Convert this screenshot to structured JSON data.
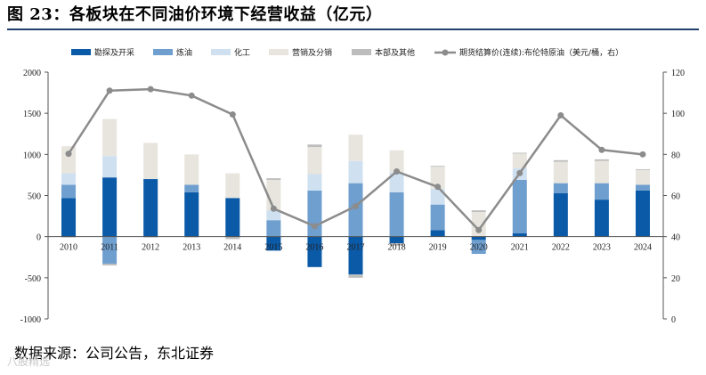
{
  "figure": {
    "title": "图 23：各板块在不同油价环境下经营收益（亿元）",
    "source": "数据来源：公司公告，东北证券",
    "watermark": "八股精选"
  },
  "chart_data": {
    "type": "bar",
    "stacked": true,
    "categories": [
      "2010",
      "2011",
      "2012",
      "2013",
      "2014",
      "2015",
      "2016",
      "2017",
      "2018",
      "2019",
      "2020",
      "2021",
      "2022",
      "2023",
      "2024"
    ],
    "series": [
      {
        "name": "勘探及开采",
        "color": "#0a5aa8",
        "values": [
          470,
          720,
          700,
          540,
          470,
          -170,
          -370,
          -460,
          -80,
          80,
          -40,
          40,
          530,
          450,
          560
        ]
      },
      {
        "name": "炼油",
        "color": "#6f9fcf",
        "values": [
          160,
          -330,
          0,
          90,
          0,
          200,
          560,
          650,
          540,
          310,
          -170,
          650,
          120,
          200,
          70
        ]
      },
      {
        "name": "化工",
        "color": "#cfe0f1",
        "values": [
          140,
          260,
          0,
          0,
          0,
          120,
          200,
          270,
          240,
          190,
          0,
          140,
          0,
          0,
          0
        ]
      },
      {
        "name": "营销及分销",
        "color": "#e8e5de",
        "values": [
          330,
          450,
          440,
          370,
          300,
          370,
          330,
          320,
          270,
          270,
          300,
          180,
          260,
          270,
          180
        ]
      },
      {
        "name": "本部及其他",
        "color": "#bdbdbd",
        "values": [
          -10,
          -20,
          -10,
          -10,
          -30,
          20,
          30,
          -40,
          -30,
          10,
          20,
          10,
          20,
          20,
          10
        ]
      }
    ],
    "line_series": {
      "name": "期货结算价(连续):布伦特原油（美元/桶，右）",
      "color": "#8c8c8c",
      "axis": "right",
      "values": [
        80.3,
        111,
        111.7,
        108.6,
        99.4,
        53.6,
        45.1,
        54.8,
        71.7,
        64.2,
        43.2,
        70.9,
        99.0,
        82.2,
        80.0
      ]
    },
    "yleft": {
      "min": -1000,
      "max": 2000,
      "ticks": [
        -1000,
        -500,
        0,
        500,
        1000,
        1500,
        2000
      ]
    },
    "yright": {
      "min": 0,
      "max": 120,
      "ticks": [
        0,
        20,
        40,
        60,
        80,
        100,
        120
      ]
    },
    "legend_position": "top",
    "grid": false
  }
}
